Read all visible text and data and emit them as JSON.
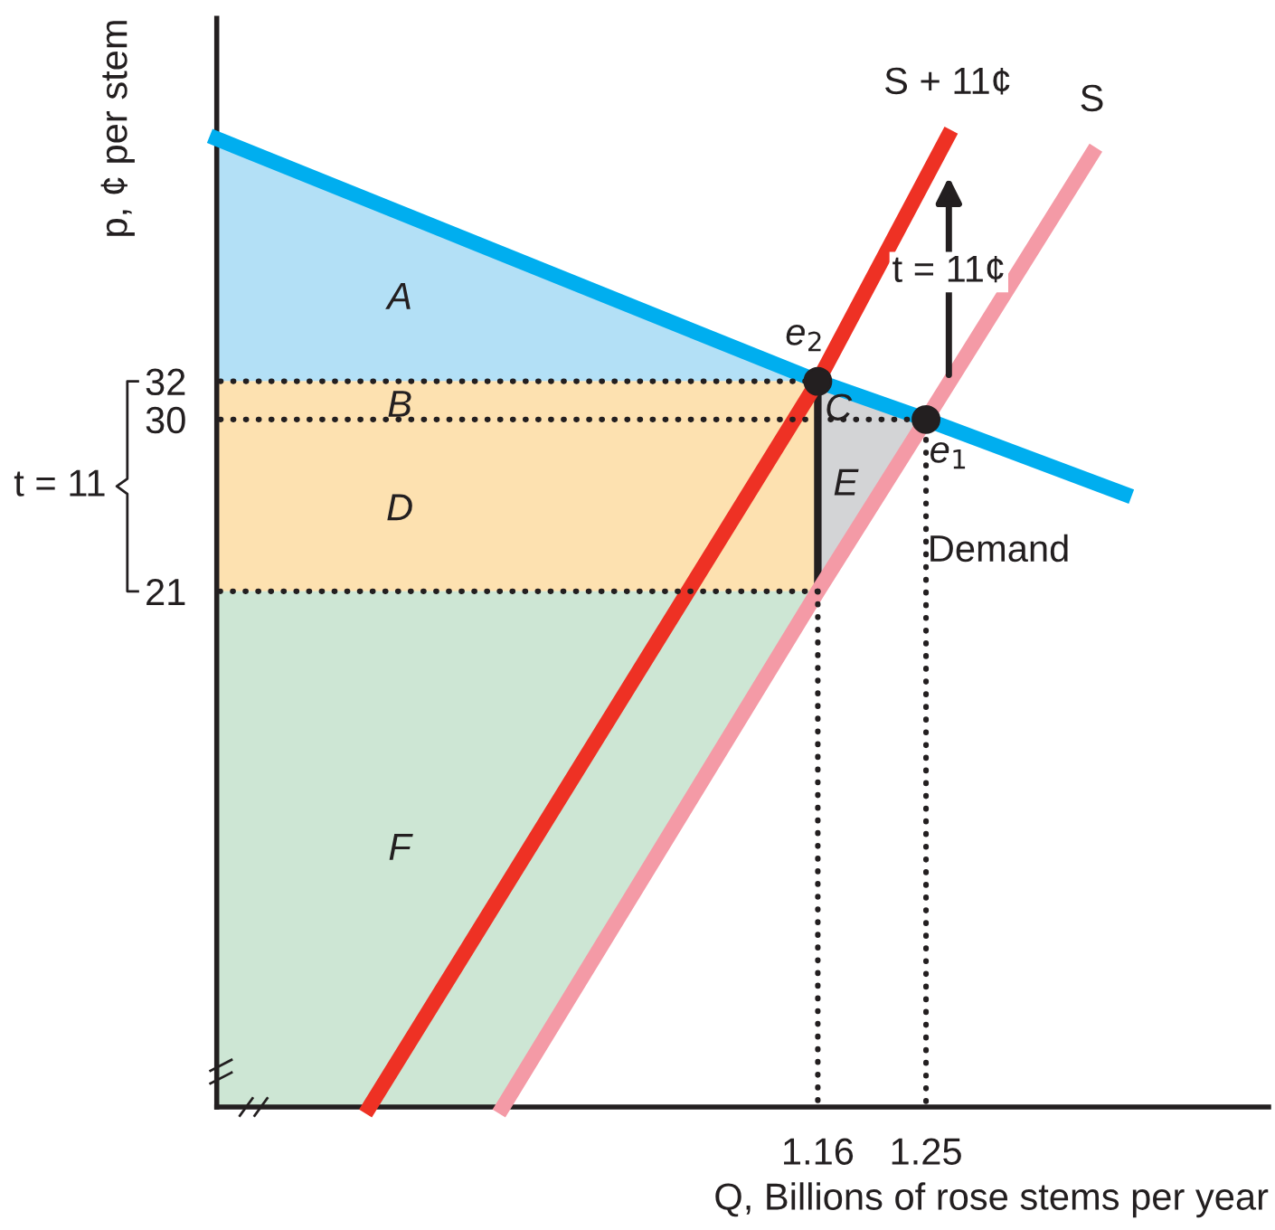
{
  "chart_data": {
    "type": "line",
    "xlabel": "Q, Billions of rose stems per year",
    "ylabel": "p, ¢ per stem",
    "xlim": [
      0.66,
      1.535
    ],
    "ylim": [
      -6,
      51
    ],
    "xticks": [
      1.16,
      1.25
    ],
    "yticks": [
      21,
      30,
      32
    ],
    "marker": "none",
    "series": [
      {
        "line_style": "dotted",
        "x": [
          0.663,
          1.16
        ],
        "values": [
          32,
          32
        ],
        "color": "#231f20"
      },
      {
        "line_style": "dotted",
        "x": [
          0.663,
          1.25
        ],
        "values": [
          30,
          30
        ],
        "color": "#231f20"
      },
      {
        "line_style": "dotted",
        "x": [
          1.16,
          0.663
        ],
        "values": [
          21,
          21
        ],
        "color": "#231f20"
      },
      {
        "line_style": "dotted",
        "x": [
          1.16,
          1.16
        ],
        "values": [
          21,
          -5.7
        ],
        "color": "#231f20"
      },
      {
        "line_style": "dotted",
        "x": [
          1.25,
          1.25
        ],
        "values": [
          -5.7,
          30
        ],
        "color": "#231f20"
      },
      {
        "line_style": "solid",
        "x": [
          1.16,
          1.16
        ],
        "values": [
          21,
          32
        ],
        "color": "#231f20"
      },
      {
        "name": "S",
        "line_style": "solid",
        "x": [
          0.898,
          1.16,
          1.25,
          1.388
        ],
        "values": [
          -6,
          21,
          30,
          43.9
        ],
        "color": "#f49aa6"
      },
      {
        "name": "S + 11¢",
        "line_style": "solid",
        "x": [
          0.787,
          1.16,
          1.268
        ],
        "values": [
          -6,
          32,
          44.8
        ],
        "color": "#ee3124"
      },
      {
        "name": "Demand",
        "line_style": "solid",
        "x": [
          0.66,
          1.16,
          1.25,
          1.415
        ],
        "values": [
          44.7,
          32,
          30,
          26.1
        ],
        "color": "#00aeef"
      },
      {
        "type": "scatter",
        "marker": "circle",
        "x": [
          1.16,
          1.25
        ],
        "values": [
          32,
          30
        ],
        "color": "#231f20"
      }
    ],
    "annotations": [
      "A",
      "B",
      "C",
      "D",
      "E",
      "F",
      "e$_{2}$",
      "e$_{1}$",
      "t = 11¢",
      "t = 11"
    ]
  }
}
